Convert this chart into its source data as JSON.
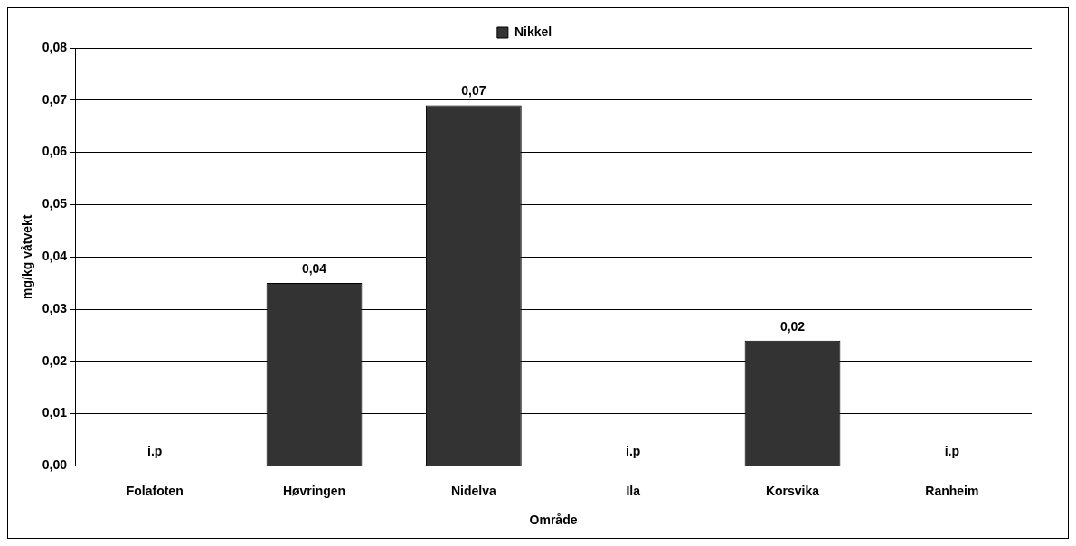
{
  "chart_data": {
    "type": "bar",
    "xlabel": "Område",
    "ylabel": "mg/kg våtvekt",
    "categories": [
      "Folafoten",
      "Høvringen",
      "Nidelva",
      "Ila",
      "Korsvika",
      "Ranheim"
    ],
    "series": [
      {
        "name": "Nikkel",
        "color": "#333333",
        "values": [
          null,
          0.035,
          0.069,
          null,
          0.024,
          null
        ],
        "value_labels": [
          "i.p",
          "0,04",
          "0,07",
          "i.p",
          "0,02",
          "i.p"
        ]
      }
    ],
    "ylim": [
      0,
      0.08
    ],
    "yticks": [
      {
        "value": 0,
        "label": "0,00"
      },
      {
        "value": 0.01,
        "label": "0,01"
      },
      {
        "value": 0.02,
        "label": "0,02"
      },
      {
        "value": 0.03,
        "label": "0,03"
      },
      {
        "value": 0.04,
        "label": "0,04"
      },
      {
        "value": 0.05,
        "label": "0,05"
      },
      {
        "value": 0.06,
        "label": "0,06"
      },
      {
        "value": 0.07,
        "label": "0,07"
      },
      {
        "value": 0.08,
        "label": "0,08"
      }
    ],
    "grid": "y",
    "legend": "top"
  }
}
